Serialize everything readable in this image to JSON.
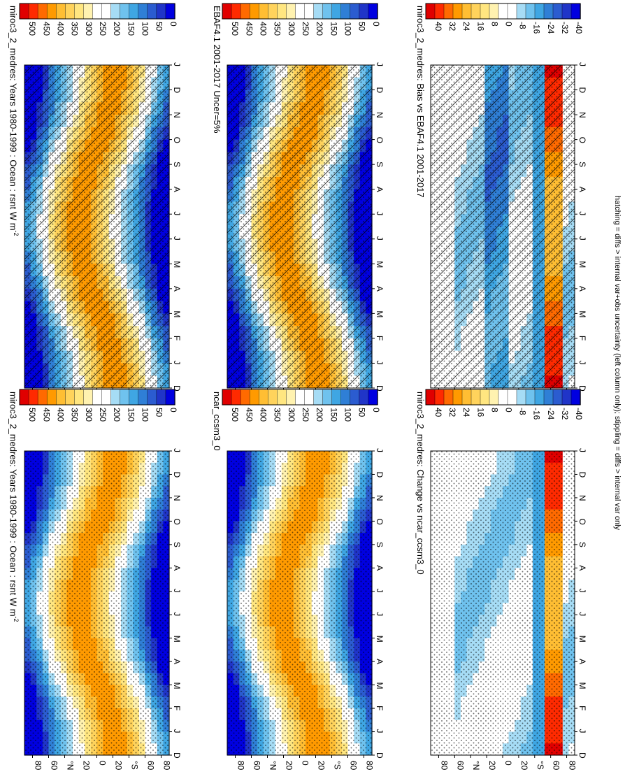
{
  "footnote": "hatching = diffs > internal var+obs uncertainty (left column only); stippling = diffs > internal var only",
  "panel_titles": {
    "p0": "miroc3_2_medres: Years 1980-1999 : Ocean : rsnt W m",
    "p1": "miroc3_2_medres: Years 1980-1999 : Ocean : rsnt W m",
    "p2": "EBAF4.1 2001-2017 Uncer=5%",
    "p3": "ncar_ccsm3_0",
    "p4": "miroc3_2_medres: Bias vs EBAF4.1 2001-2017",
    "p5": "miroc3_2_medres: Change vs ncar_ccsm3_0"
  },
  "title_superscript": "-2",
  "colors": {
    "abs_scale": [
      "#e00000",
      "#ff2a00",
      "#ff6a00",
      "#ff9a00",
      "#ffbe33",
      "#ffd35c",
      "#ffe680",
      "#fff2b0",
      "#ffffff",
      "#ffffff",
      "#a6dcf5",
      "#6fc2ee",
      "#3fa6e3",
      "#2f7fd6",
      "#2b5cd0",
      "#2035c8",
      "#0000e0"
    ],
    "diff_scale": [
      "#e00000",
      "#ff2a00",
      "#ff6a00",
      "#ff9a00",
      "#ffbe33",
      "#ffd35c",
      "#ffe680",
      "#fff2b0",
      "#ffffff",
      "#ffffff",
      "#a6dcf5",
      "#6fc2ee",
      "#3fa6e3",
      "#2f7fd6",
      "#2b5cd0",
      "#2035c8",
      "#0000e0"
    ]
  },
  "chart_data": [
    {
      "id": "p0",
      "type": "heatmap",
      "title": "miroc3_2_medres: Years 1980-1999 : Ocean : rsnt W m-2",
      "x": [
        "D",
        "J",
        "F",
        "M",
        "A",
        "M",
        "J",
        "J",
        "A",
        "S",
        "O",
        "N",
        "D",
        "J"
      ],
      "y_ticks": [
        "80",
        "60",
        "°N",
        "20",
        "0",
        "20",
        "°S",
        "60",
        "80"
      ],
      "ylim": [
        -90,
        90
      ],
      "colorbar": {
        "labels": [
          "500",
          "450",
          "400",
          "350",
          "300",
          "250",
          "200",
          "150",
          "100",
          "50",
          "0"
        ]
      },
      "hatching": true,
      "stippling": true
    },
    {
      "id": "p1",
      "type": "heatmap",
      "title": "miroc3_2_medres: Years 1980-1999 : Ocean : rsnt W m-2",
      "x": [
        "D",
        "J",
        "F",
        "M",
        "A",
        "M",
        "J",
        "J",
        "A",
        "S",
        "O",
        "N",
        "D",
        "J"
      ],
      "y_ticks": [
        "80",
        "60",
        "°N",
        "20",
        "0",
        "20",
        "°S",
        "60",
        "80"
      ],
      "ylim": [
        -90,
        90
      ],
      "colorbar": {
        "labels": [
          "500",
          "450",
          "400",
          "350",
          "300",
          "250",
          "200",
          "150",
          "100",
          "50",
          "0"
        ]
      },
      "hatching": false,
      "stippling": true
    },
    {
      "id": "p2",
      "type": "heatmap",
      "title": "EBAF4.1 2001-2017 Uncer=5%",
      "x": [
        "D",
        "J",
        "F",
        "M",
        "A",
        "M",
        "J",
        "J",
        "A",
        "S",
        "O",
        "N",
        "D",
        "J"
      ],
      "y_ticks": [
        "80",
        "60",
        "°N",
        "20",
        "0",
        "20",
        "°S",
        "60",
        "80"
      ],
      "ylim": [
        -90,
        90
      ],
      "colorbar": {
        "labels": [
          "500",
          "450",
          "400",
          "350",
          "300",
          "250",
          "200",
          "150",
          "100",
          "50",
          "0"
        ]
      },
      "hatching": true,
      "stippling": true
    },
    {
      "id": "p3",
      "type": "heatmap",
      "title": "ncar_ccsm3_0",
      "x": [
        "D",
        "J",
        "F",
        "M",
        "A",
        "M",
        "J",
        "J",
        "A",
        "S",
        "O",
        "N",
        "D",
        "J"
      ],
      "y_ticks": [
        "80",
        "60",
        "°N",
        "20",
        "0",
        "20",
        "°S",
        "60",
        "80"
      ],
      "ylim": [
        -90,
        90
      ],
      "colorbar": {
        "labels": [
          "500",
          "450",
          "400",
          "350",
          "300",
          "250",
          "200",
          "150",
          "100",
          "50",
          "0"
        ]
      },
      "hatching": false,
      "stippling": true
    },
    {
      "id": "p4",
      "type": "heatmap",
      "title": "miroc3_2_medres: Bias vs EBAF4.1 2001-2017",
      "x": [
        "D",
        "J",
        "F",
        "M",
        "A",
        "M",
        "J",
        "J",
        "A",
        "S",
        "O",
        "N",
        "D",
        "J"
      ],
      "y_ticks": [
        "80",
        "60",
        "°N",
        "20",
        "0",
        "20",
        "°S",
        "60",
        "80"
      ],
      "ylim": [
        -90,
        90
      ],
      "colorbar": {
        "labels": [
          "40",
          "32",
          "24",
          "16",
          "8",
          "0",
          "-8",
          "-16",
          "-24",
          "-32",
          "-40"
        ]
      },
      "hatching": true,
      "stippling": true
    },
    {
      "id": "p5",
      "type": "heatmap",
      "title": "miroc3_2_medres: Change vs ncar_ccsm3_0",
      "x": [
        "D",
        "J",
        "F",
        "M",
        "A",
        "M",
        "J",
        "J",
        "A",
        "S",
        "O",
        "N",
        "D",
        "J"
      ],
      "y_ticks": [
        "80",
        "60",
        "°N",
        "20",
        "0",
        "20",
        "°S",
        "60",
        "80"
      ],
      "ylim": [
        -90,
        90
      ],
      "colorbar": {
        "labels": [
          "40",
          "32",
          "24",
          "16",
          "8",
          "0",
          "-8",
          "-16",
          "-24",
          "-32",
          "-40"
        ]
      },
      "hatching": false,
      "stippling": true
    }
  ]
}
